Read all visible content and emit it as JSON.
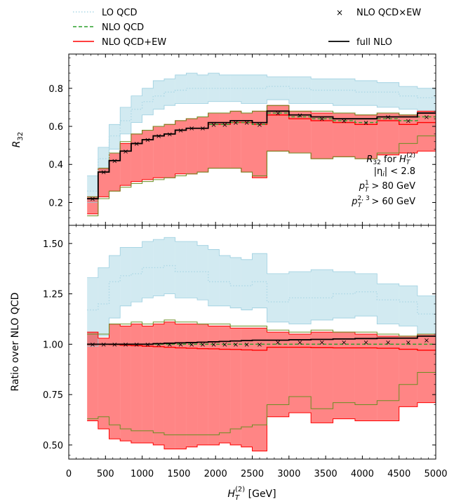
{
  "legend": {
    "items": [
      {
        "label": "LO QCD",
        "style": "dotted",
        "color": "#add8e6"
      },
      {
        "label": "NLO QCD",
        "style": "dashed",
        "color": "#2ca02c"
      },
      {
        "label": "NLO QCD+EW",
        "style": "solid",
        "color": "#ff0000"
      },
      {
        "label": "NLO QCD×EW",
        "style": "marker-x",
        "color": "#8b0000"
      },
      {
        "label": "full NLO",
        "style": "solid",
        "color": "#000000"
      }
    ]
  },
  "annotation": {
    "line1_main": "R",
    "line1_sub": "32",
    "line1_mid": " for ",
    "line1_var": "H",
    "line1_var_sub": "T",
    "line1_var_sup": "(2)",
    "line2": "|η",
    "line2_sub": "i",
    "line2_end": "| < 2.8",
    "line3_main": "p",
    "line3_sub": "T",
    "line3_sup": "1",
    "line3_end": " > 80 GeV",
    "line4_main": "p",
    "line4_sub": "T",
    "line4_sup": "2, 3",
    "line4_end": " > 60 GeV"
  },
  "chart_data": [
    {
      "type": "step",
      "panel": "top",
      "ylabel_main": "R",
      "ylabel_sub": "32",
      "xlim": [
        0,
        5000
      ],
      "ylim": [
        0.08,
        0.98
      ],
      "yticks": [
        "0.2",
        "0.4",
        "0.6",
        "0.8"
      ],
      "ytick_values": [
        0.2,
        0.4,
        0.6,
        0.8
      ],
      "bin_edges": [
        250,
        400,
        550,
        700,
        850,
        1000,
        1150,
        1300,
        1450,
        1600,
        1750,
        1900,
        2050,
        2200,
        2350,
        2500,
        2700,
        3000,
        3300,
        3600,
        3900,
        4200,
        4500,
        4750,
        5000
      ],
      "series": [
        {
          "name": "LO QCD",
          "central": [
            0.26,
            0.43,
            0.55,
            0.63,
            0.69,
            0.73,
            0.76,
            0.78,
            0.79,
            0.8,
            0.8,
            0.8,
            0.8,
            0.8,
            0.8,
            0.8,
            0.81,
            0.8,
            0.79,
            0.79,
            0.78,
            0.78,
            0.76,
            0.75
          ],
          "low": [
            0.2,
            0.36,
            0.48,
            0.56,
            0.62,
            0.66,
            0.69,
            0.71,
            0.72,
            0.72,
            0.72,
            0.73,
            0.73,
            0.73,
            0.72,
            0.72,
            0.74,
            0.72,
            0.72,
            0.71,
            0.71,
            0.7,
            0.69,
            0.68
          ],
          "high": [
            0.34,
            0.49,
            0.61,
            0.7,
            0.76,
            0.8,
            0.84,
            0.85,
            0.87,
            0.88,
            0.87,
            0.88,
            0.87,
            0.87,
            0.87,
            0.87,
            0.86,
            0.86,
            0.85,
            0.85,
            0.84,
            0.83,
            0.81,
            0.8
          ]
        },
        {
          "name": "NLO QCD",
          "central": [
            0.22,
            0.36,
            0.42,
            0.47,
            0.51,
            0.53,
            0.55,
            0.56,
            0.58,
            0.59,
            0.59,
            0.61,
            0.61,
            0.62,
            0.62,
            0.61,
            0.67,
            0.65,
            0.64,
            0.63,
            0.62,
            0.64,
            0.63,
            0.65
          ]
        },
        {
          "name": "NLO QCD+EW",
          "central": [
            0.22,
            0.36,
            0.42,
            0.47,
            0.51,
            0.53,
            0.55,
            0.56,
            0.58,
            0.59,
            0.59,
            0.61,
            0.61,
            0.62,
            0.62,
            0.61,
            0.66,
            0.64,
            0.63,
            0.62,
            0.61,
            0.63,
            0.61,
            0.62
          ],
          "low": [
            0.14,
            0.23,
            0.26,
            0.29,
            0.31,
            0.32,
            0.33,
            0.33,
            0.35,
            0.35,
            0.36,
            0.38,
            0.38,
            0.38,
            0.36,
            0.33,
            0.47,
            0.46,
            0.43,
            0.44,
            0.43,
            0.45,
            0.46,
            0.47
          ],
          "high": [
            0.23,
            0.38,
            0.46,
            0.51,
            0.56,
            0.58,
            0.6,
            0.61,
            0.63,
            0.64,
            0.65,
            0.67,
            0.67,
            0.68,
            0.67,
            0.68,
            0.71,
            0.68,
            0.67,
            0.67,
            0.66,
            0.67,
            0.66,
            0.68
          ]
        },
        {
          "name": "NLO QCD×EW band edges",
          "low": [
            0.13,
            0.22,
            0.26,
            0.28,
            0.3,
            0.31,
            0.32,
            0.33,
            0.34,
            0.35,
            0.36,
            0.38,
            0.38,
            0.38,
            0.36,
            0.34,
            0.47,
            0.46,
            0.43,
            0.44,
            0.43,
            0.46,
            0.51,
            0.55
          ],
          "high": [
            0.23,
            0.38,
            0.46,
            0.52,
            0.56,
            0.58,
            0.6,
            0.61,
            0.63,
            0.64,
            0.65,
            0.67,
            0.67,
            0.68,
            0.67,
            0.68,
            0.71,
            0.68,
            0.68,
            0.67,
            0.66,
            0.67,
            0.66,
            0.67
          ]
        },
        {
          "name": "NLO QCD×EW",
          "central": [
            0.22,
            0.36,
            0.42,
            0.47,
            0.51,
            0.53,
            0.55,
            0.56,
            0.58,
            0.59,
            0.59,
            0.61,
            0.61,
            0.62,
            0.62,
            0.61,
            0.67,
            0.66,
            0.64,
            0.63,
            0.62,
            0.65,
            0.63,
            0.65
          ]
        },
        {
          "name": "full NLO",
          "central": [
            0.22,
            0.36,
            0.42,
            0.47,
            0.51,
            0.53,
            0.55,
            0.56,
            0.58,
            0.59,
            0.59,
            0.62,
            0.62,
            0.63,
            0.63,
            0.62,
            0.68,
            0.66,
            0.65,
            0.64,
            0.64,
            0.65,
            0.65,
            0.67
          ]
        }
      ]
    },
    {
      "type": "step",
      "panel": "bottom",
      "ylabel": "Ratio over NLO QCD",
      "xlabel_main": "H",
      "xlabel_sub": "T",
      "xlabel_sup": "(2)",
      "xlabel_unit": " [GeV]",
      "xlim": [
        0,
        5000
      ],
      "ylim": [
        0.43,
        1.59
      ],
      "xticks": [
        "0",
        "500",
        "1000",
        "1500",
        "2000",
        "2500",
        "3000",
        "3500",
        "4000",
        "4500",
        "5000"
      ],
      "xtick_values": [
        0,
        500,
        1000,
        1500,
        2000,
        2500,
        3000,
        3500,
        4000,
        4500,
        5000
      ],
      "yticks": [
        "0.50",
        "0.75",
        "1.00",
        "1.25",
        "1.50"
      ],
      "ytick_values": [
        0.5,
        0.75,
        1.0,
        1.25,
        1.5
      ],
      "bin_edges": [
        250,
        400,
        550,
        700,
        850,
        1000,
        1150,
        1300,
        1450,
        1600,
        1750,
        1900,
        2050,
        2200,
        2350,
        2500,
        2700,
        3000,
        3300,
        3600,
        3900,
        4200,
        4500,
        4750,
        5000
      ],
      "series": [
        {
          "name": "LO QCD",
          "central": [
            1.17,
            1.2,
            1.31,
            1.34,
            1.35,
            1.38,
            1.38,
            1.39,
            1.36,
            1.36,
            1.36,
            1.31,
            1.31,
            1.29,
            1.29,
            1.31,
            1.21,
            1.23,
            1.23,
            1.25,
            1.26,
            1.22,
            1.21,
            1.15
          ],
          "low": [
            0.99,
            1.04,
            1.13,
            1.19,
            1.21,
            1.23,
            1.24,
            1.25,
            1.23,
            1.23,
            1.22,
            1.19,
            1.19,
            1.18,
            1.17,
            1.18,
            1.11,
            1.1,
            1.12,
            1.13,
            1.14,
            1.1,
            1.09,
            1.05
          ],
          "high": [
            1.33,
            1.38,
            1.44,
            1.48,
            1.48,
            1.51,
            1.52,
            1.53,
            1.51,
            1.51,
            1.49,
            1.47,
            1.44,
            1.43,
            1.42,
            1.45,
            1.35,
            1.36,
            1.37,
            1.36,
            1.35,
            1.3,
            1.29,
            1.24
          ]
        },
        {
          "name": "NLO QCD",
          "central": [
            1.0,
            1.0,
            1.0,
            1.0,
            1.0,
            1.0,
            1.0,
            1.0,
            1.0,
            1.0,
            1.0,
            1.0,
            1.0,
            1.0,
            1.0,
            1.0,
            1.0,
            1.0,
            1.0,
            1.0,
            1.0,
            1.0,
            1.0,
            1.0
          ]
        },
        {
          "name": "NLO QCD+EW",
          "central": [
            1.0,
            1.0,
            0.998,
            0.995,
            0.993,
            0.99,
            0.988,
            0.985,
            0.982,
            0.98,
            0.978,
            0.977,
            0.975,
            0.974,
            0.972,
            0.97,
            0.985,
            0.985,
            0.983,
            0.982,
            0.982,
            0.98,
            0.975,
            0.97
          ],
          "low": [
            0.62,
            0.58,
            0.53,
            0.52,
            0.51,
            0.51,
            0.5,
            0.48,
            0.48,
            0.49,
            0.5,
            0.5,
            0.51,
            0.5,
            0.49,
            0.47,
            0.64,
            0.66,
            0.61,
            0.63,
            0.62,
            0.62,
            0.69,
            0.71
          ],
          "high": [
            1.06,
            1.03,
            1.1,
            1.09,
            1.1,
            1.09,
            1.1,
            1.11,
            1.1,
            1.1,
            1.1,
            1.09,
            1.09,
            1.08,
            1.08,
            1.08,
            1.06,
            1.05,
            1.06,
            1.06,
            1.05,
            1.04,
            1.04,
            1.05
          ]
        },
        {
          "name": "NLO QCD×EW band edges",
          "low": [
            0.63,
            0.64,
            0.6,
            0.58,
            0.57,
            0.57,
            0.56,
            0.55,
            0.55,
            0.55,
            0.55,
            0.55,
            0.56,
            0.58,
            0.59,
            0.6,
            0.7,
            0.74,
            0.68,
            0.71,
            0.7,
            0.72,
            0.8,
            0.86
          ],
          "high": [
            1.05,
            1.05,
            1.1,
            1.1,
            1.11,
            1.1,
            1.11,
            1.12,
            1.11,
            1.11,
            1.1,
            1.1,
            1.1,
            1.09,
            1.09,
            1.09,
            1.07,
            1.06,
            1.07,
            1.06,
            1.06,
            1.05,
            1.04,
            1.05
          ]
        },
        {
          "name": "NLO QCD×EW",
          "central": [
            1.0,
            1.0,
            1.0,
            1.0,
            1.0,
            1.0,
            1.0,
            1.0,
            1.0,
            1.0,
            1.0,
            1.0,
            1.0,
            1.0,
            1.0,
            1.0,
            1.01,
            1.01,
            1.01,
            1.01,
            1.01,
            1.01,
            1.01,
            1.02
          ]
        },
        {
          "name": "full NLO",
          "central": [
            1.0,
            1.0,
            1.0,
            1.0,
            1.0,
            1.0,
            1.003,
            1.005,
            1.007,
            1.008,
            1.01,
            1.012,
            1.014,
            1.016,
            1.018,
            1.02,
            1.02,
            1.022,
            1.024,
            1.026,
            1.028,
            1.03,
            1.03,
            1.04
          ]
        }
      ]
    }
  ]
}
